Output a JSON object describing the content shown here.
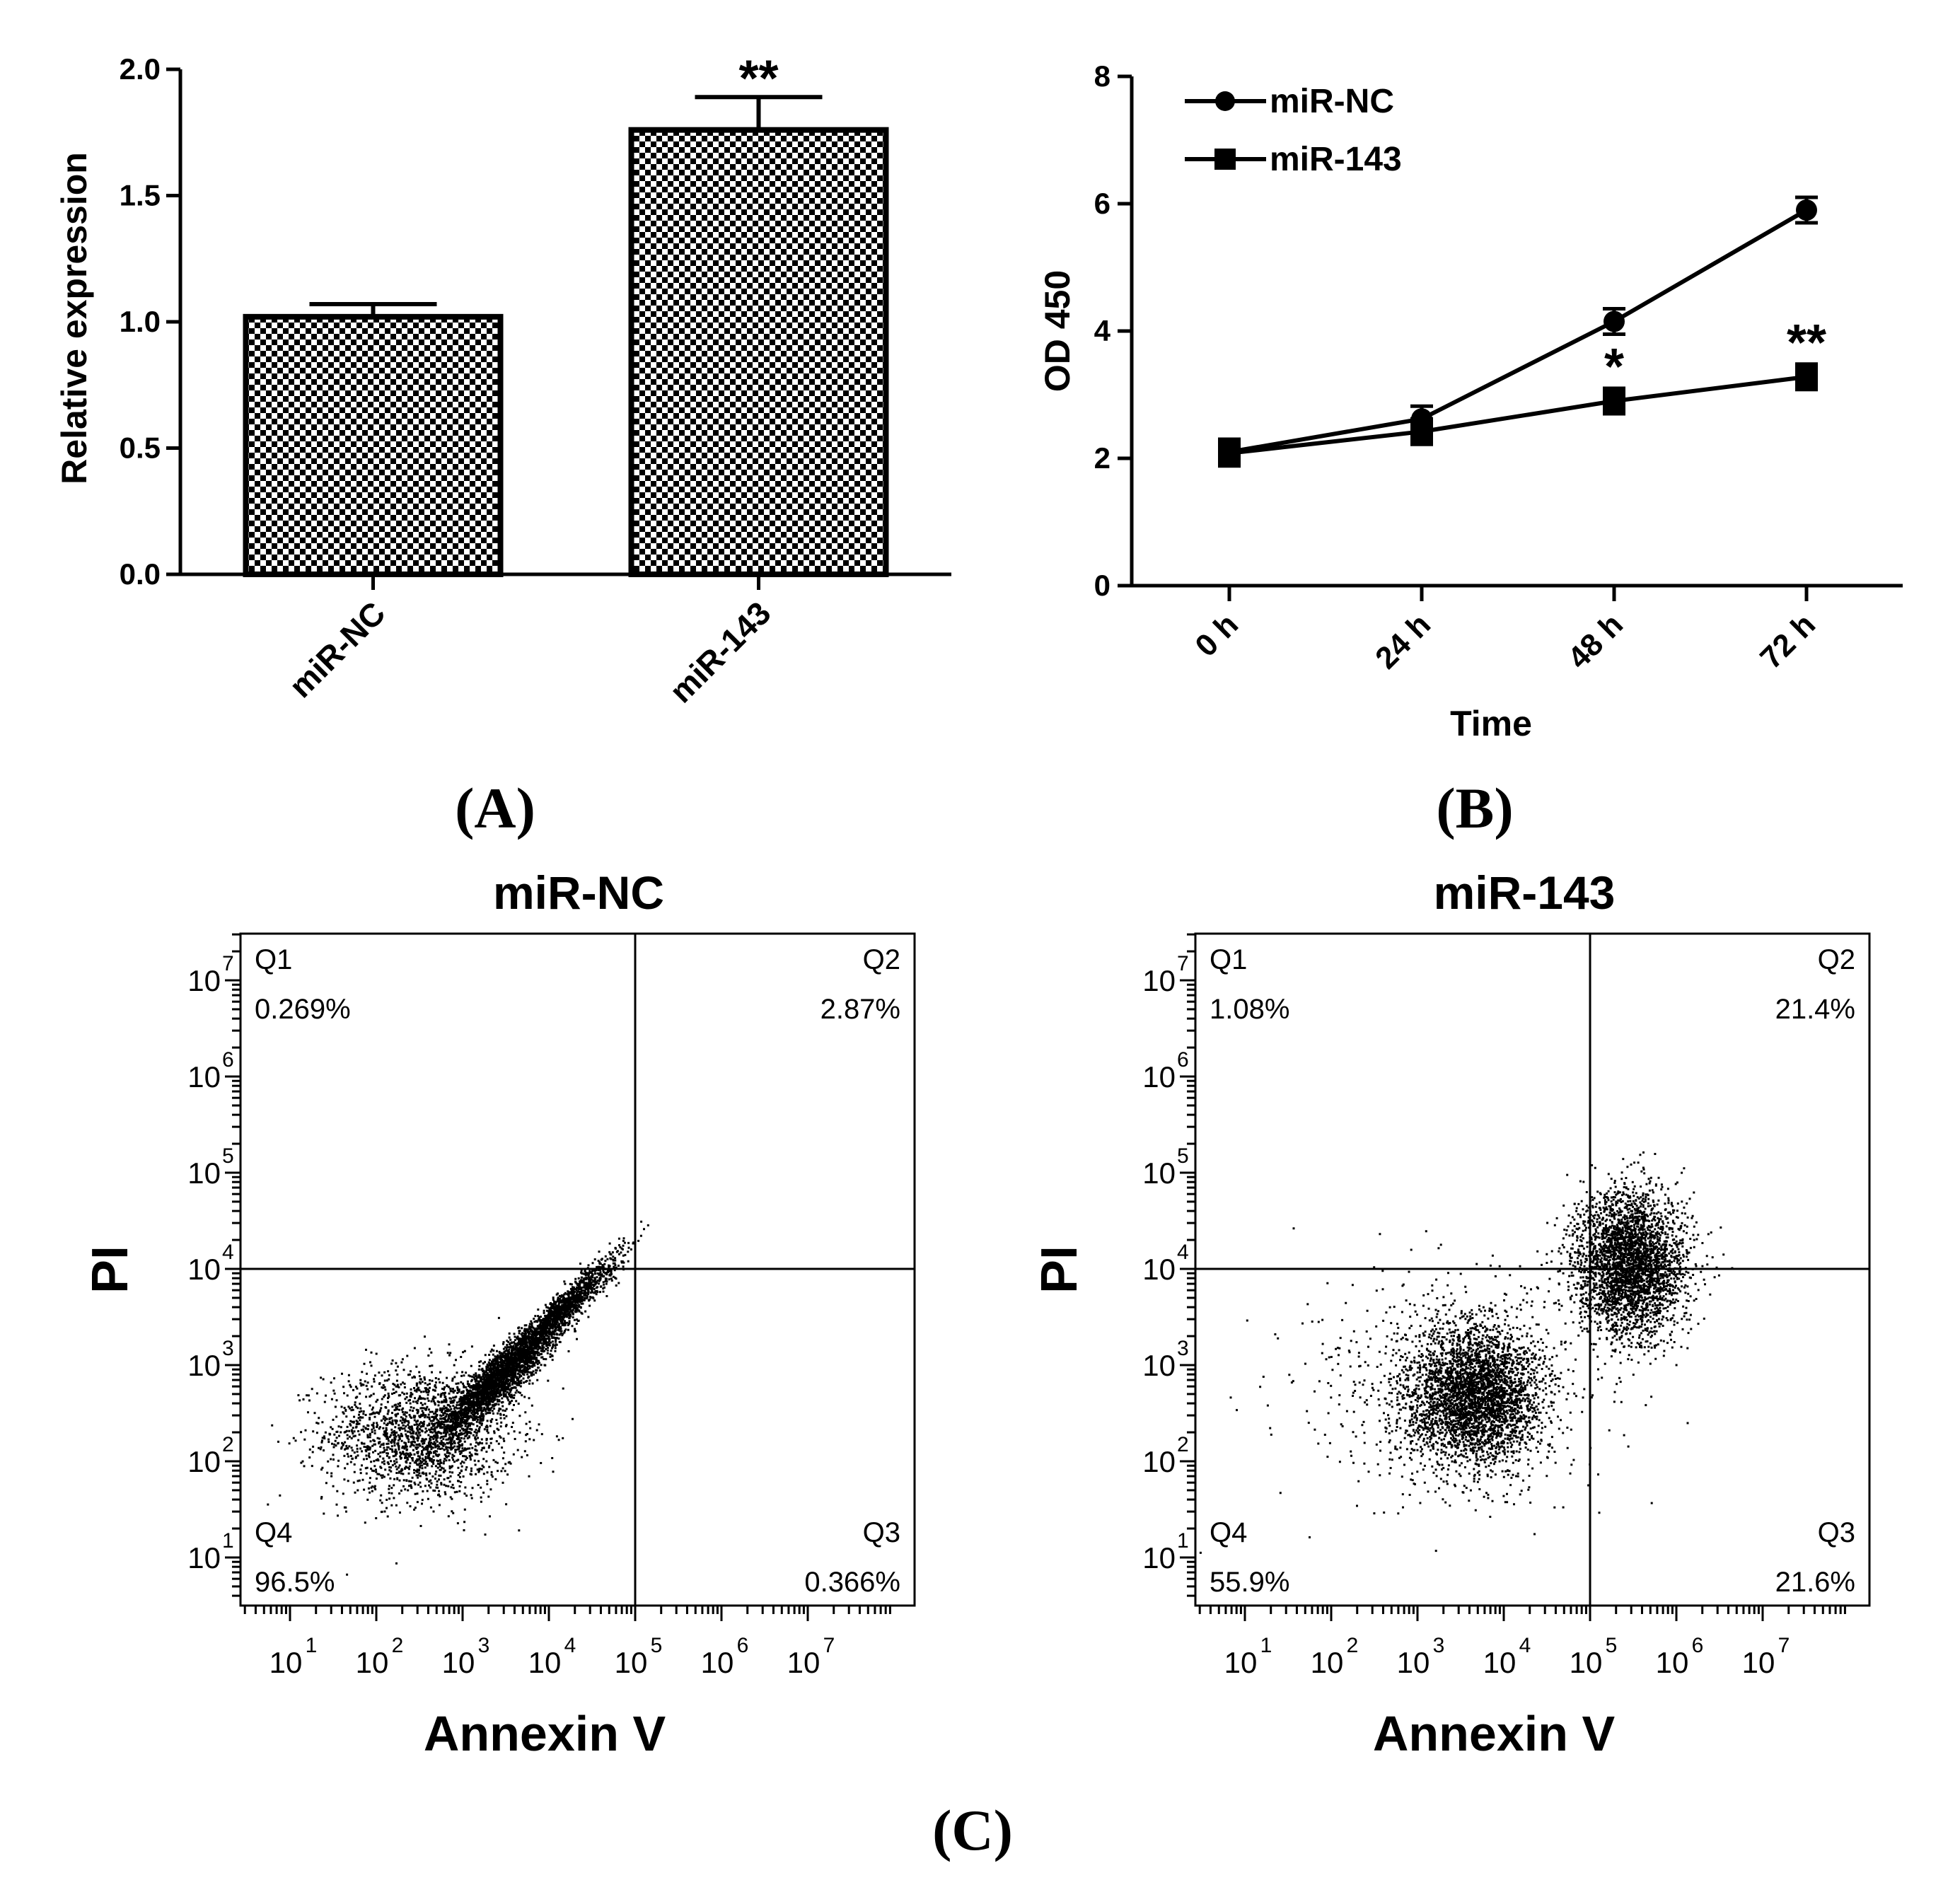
{
  "chart_data": [
    {
      "type": "bar",
      "panel_label": "A",
      "categories": [
        "miR-NC",
        "miR-143"
      ],
      "values": [
        1.02,
        1.76
      ],
      "errors": [
        0.05,
        0.13
      ],
      "significance": [
        "",
        "**"
      ],
      "ylabel": "Relative expression",
      "xlabel": "",
      "ylim": [
        0,
        2.0
      ],
      "yticks": [
        "0.0",
        "0.5",
        "1.0",
        "1.5",
        "2.0"
      ],
      "fill": "checkerboard"
    },
    {
      "type": "line",
      "panel_label": "B",
      "categories": [
        "0 h",
        "24 h",
        "48 h",
        "72 h"
      ],
      "series": [
        {
          "name": "miR-NC",
          "marker": "circle",
          "values": [
            2.1,
            2.62,
            4.15,
            5.9
          ],
          "errors": [
            0.2,
            0.2,
            0.2,
            0.2
          ],
          "significance": [
            "",
            "",
            "",
            ""
          ]
        },
        {
          "name": "miR-143",
          "marker": "square",
          "values": [
            2.08,
            2.42,
            2.9,
            3.28
          ],
          "errors": [
            0.2,
            0.2,
            0.2,
            0.2
          ],
          "significance": [
            "",
            "",
            "*",
            "**"
          ]
        }
      ],
      "xlabel": "Time",
      "ylabel": "OD 450",
      "ylim": [
        0,
        8
      ],
      "yticks": [
        "0",
        "2",
        "4",
        "6",
        "8"
      ]
    },
    {
      "type": "scatter",
      "panel_label": "C",
      "title": "miR-NC",
      "xlabel": "Annexin V",
      "ylabel": "PI",
      "x_scale": "log",
      "y_scale": "log",
      "x_decades": [
        "1",
        "2",
        "3",
        "4",
        "5",
        "6",
        "7"
      ],
      "y_decades": [
        "1",
        "2",
        "3",
        "4",
        "5",
        "6",
        "7"
      ],
      "gate_x": 100000.0,
      "gate_y": 10000.0,
      "quadrants": [
        {
          "name": "Q1",
          "value": "0.269%"
        },
        {
          "name": "Q2",
          "value": "2.87%"
        },
        {
          "name": "Q3",
          "value": "0.366%"
        },
        {
          "name": "Q4",
          "value": "96.5%"
        }
      ],
      "populations": [
        {
          "center_log": [
            2.5,
            2.3
          ],
          "spread_log": [
            0.55,
            0.35
          ],
          "count": 1800
        },
        {
          "center_log": [
            3.4,
            2.85
          ],
          "spread_log": [
            0.35,
            0.3
          ],
          "count": 2500,
          "correlated": 0.9
        },
        {
          "center_log": [
            4.1,
            3.55
          ],
          "spread_log": [
            0.35,
            0.3
          ],
          "count": 1500,
          "correlated": 0.95
        }
      ]
    },
    {
      "type": "scatter",
      "panel_label": "C",
      "title": "miR-143",
      "xlabel": "Annexin V",
      "ylabel": "PI",
      "x_scale": "log",
      "y_scale": "log",
      "x_decades": [
        "1",
        "2",
        "3",
        "4",
        "5",
        "6",
        "7"
      ],
      "y_decades": [
        "1",
        "2",
        "3",
        "4",
        "5",
        "6",
        "7"
      ],
      "gate_x": 100000.0,
      "gate_y": 10000.0,
      "quadrants": [
        {
          "name": "Q1",
          "value": "1.08%"
        },
        {
          "name": "Q2",
          "value": "21.4%"
        },
        {
          "name": "Q3",
          "value": "21.6%"
        },
        {
          "name": "Q4",
          "value": "55.9%"
        }
      ],
      "populations": [
        {
          "center_log": [
            3.65,
            2.7
          ],
          "spread_log": [
            0.38,
            0.35
          ],
          "count": 3200
        },
        {
          "center_log": [
            5.45,
            4.05
          ],
          "spread_log": [
            0.32,
            0.38
          ],
          "count": 3200
        },
        {
          "center_log": [
            3.4,
            2.8
          ],
          "spread_log": [
            0.9,
            0.6
          ],
          "count": 700
        }
      ]
    }
  ],
  "panel_labels": {
    "a": "(A)",
    "b": "(B)",
    "c": "(C)"
  }
}
